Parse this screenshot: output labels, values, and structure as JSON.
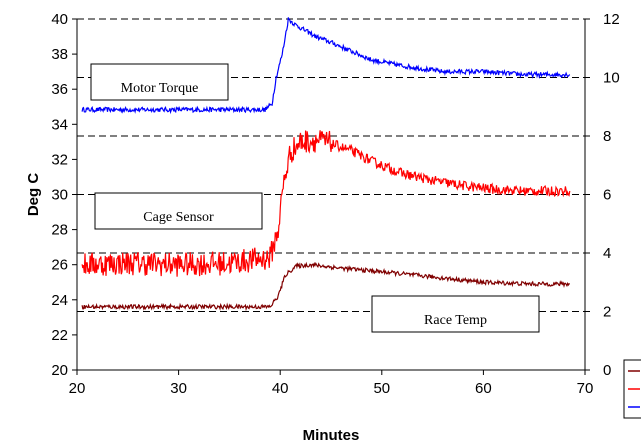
{
  "chart_data": {
    "type": "line",
    "xlabel": "Minutes",
    "ylabel": "Deg C",
    "xlim": [
      20,
      70
    ],
    "ylim_left": [
      20,
      40
    ],
    "ylim_right": [
      0,
      12
    ],
    "x_ticks": [
      "20",
      "30",
      "40",
      "50",
      "60",
      "70"
    ],
    "y_left_ticks": [
      "20",
      "22",
      "24",
      "26",
      "28",
      "30",
      "32",
      "34",
      "36",
      "38",
      "40"
    ],
    "y_right_ticks": [
      "0",
      "2",
      "4",
      "6",
      "8",
      "10",
      "12"
    ],
    "grid": "horizontal dashed gridlines at right-axis ticks",
    "legend": "bottom-right, partially cut off, three colored line swatches without visible text",
    "annotations": [
      "Motor Torque",
      "Cage Sensor",
      "Race Temp"
    ],
    "series": [
      {
        "label_box": "Motor Torque",
        "axis": "right",
        "color": "#0000ff",
        "x": [
          20.5,
          25,
          30,
          35,
          38.5,
          39.2,
          39.6,
          40.2,
          40.8,
          41.5,
          42.5,
          43.5,
          45,
          47,
          49,
          52,
          56,
          60,
          64,
          68.5
        ],
        "y": [
          8.9,
          8.9,
          8.9,
          8.9,
          8.9,
          9.1,
          10.0,
          10.8,
          12.0,
          11.8,
          11.6,
          11.4,
          11.2,
          10.9,
          10.6,
          10.4,
          10.2,
          10.2,
          10.1,
          10.1
        ]
      },
      {
        "label_box": "Cage Sensor",
        "axis": "left",
        "color": "#ff0000",
        "x": [
          20.5,
          25,
          30,
          35,
          39,
          39.8,
          40.3,
          41,
          42,
          43.5,
          45,
          47,
          49,
          52,
          55,
          58,
          61,
          64,
          68.5
        ],
        "y": [
          26.0,
          26.1,
          26.0,
          26.1,
          26.4,
          28.0,
          30.5,
          32.4,
          33.0,
          33.1,
          32.9,
          32.5,
          31.9,
          31.2,
          30.8,
          30.5,
          30.3,
          30.2,
          30.2
        ]
      },
      {
        "label_box": "Race Temp",
        "axis": "left",
        "color": "#800000",
        "x": [
          20.5,
          25,
          30,
          35,
          39,
          39.8,
          40.5,
          41.5,
          43,
          46,
          50,
          55,
          60,
          65,
          68.5
        ],
        "y": [
          23.6,
          23.6,
          23.6,
          23.6,
          23.6,
          24.2,
          25.4,
          25.9,
          26.0,
          25.8,
          25.6,
          25.3,
          25.0,
          24.9,
          24.9
        ]
      }
    ]
  }
}
